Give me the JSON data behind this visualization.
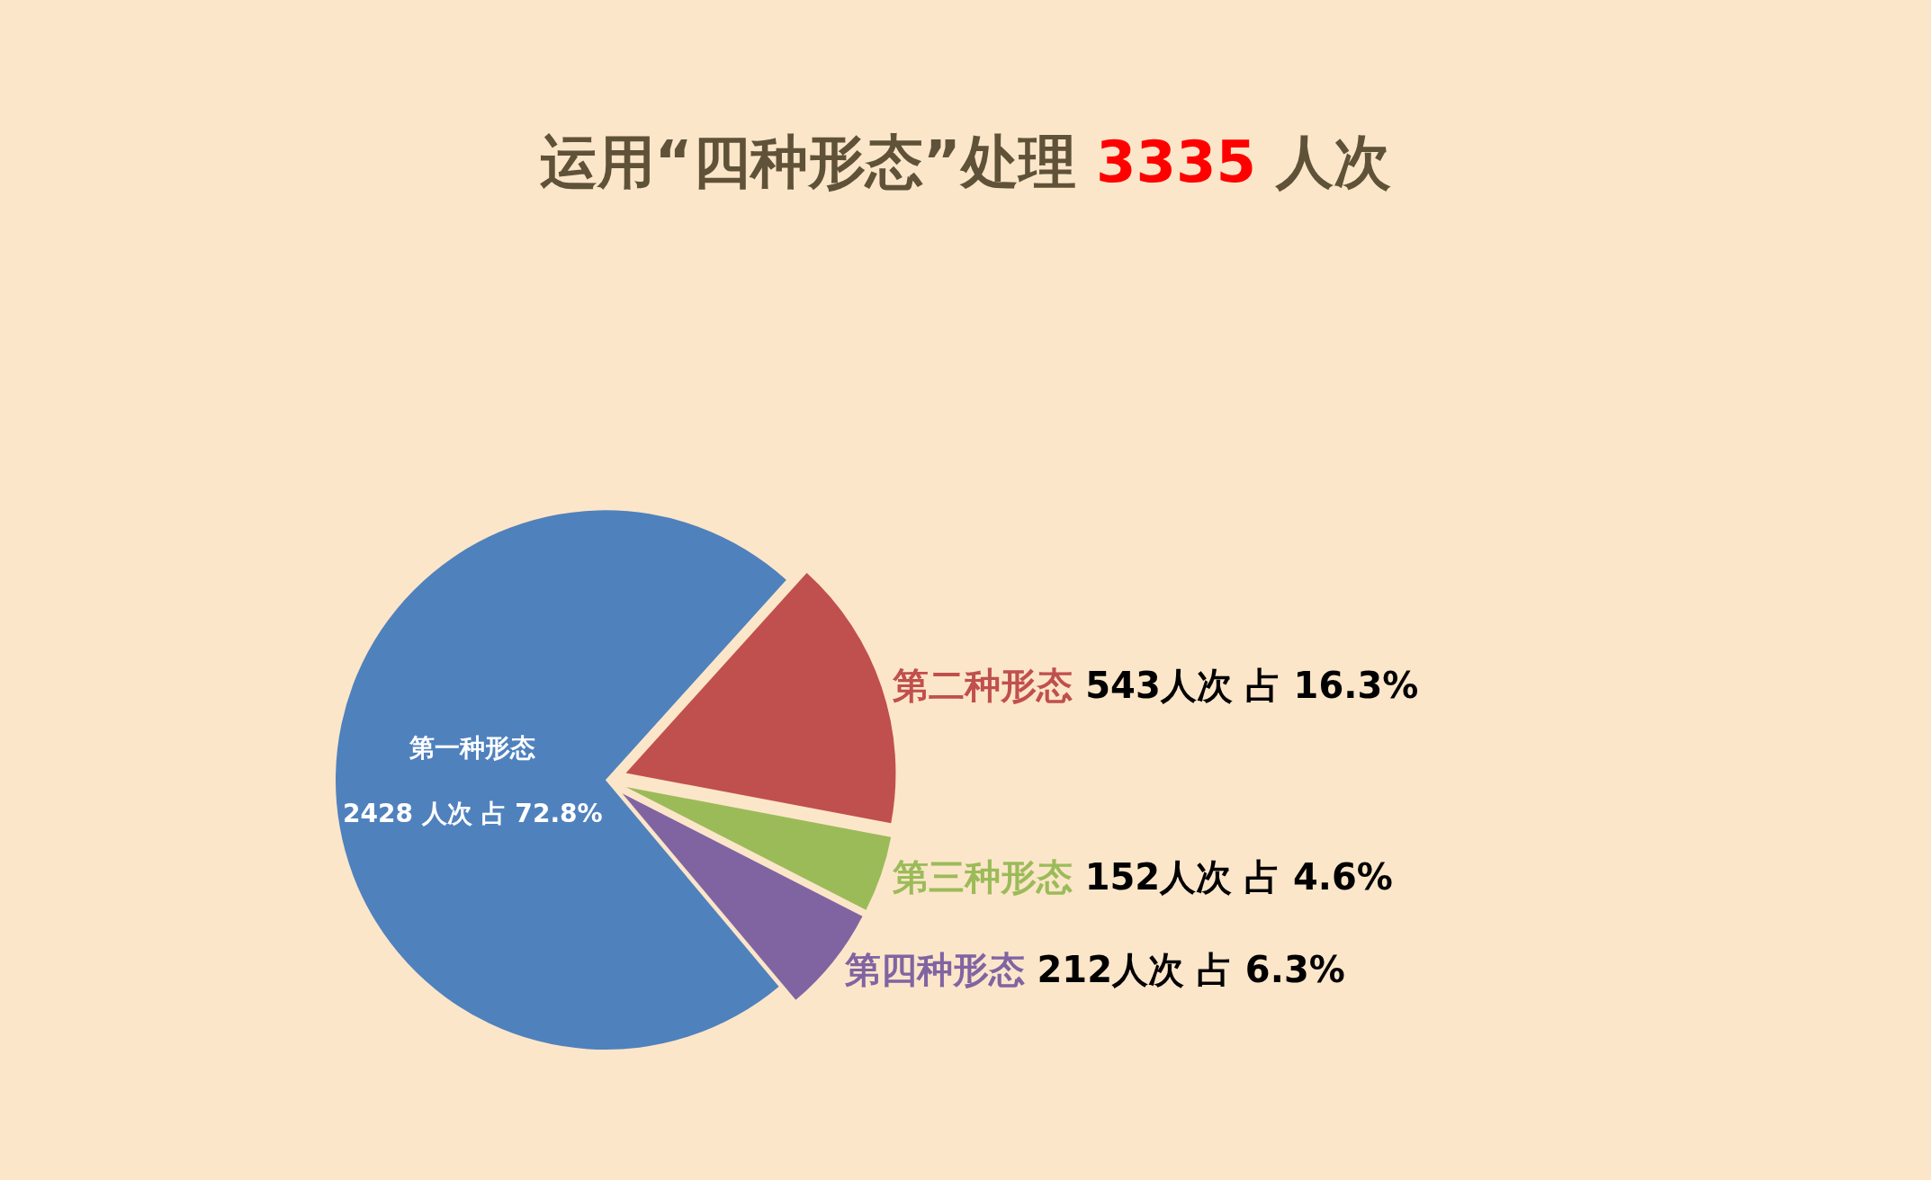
{
  "chart_data": {
    "type": "pie",
    "title": "运用“四种形态”处理 3335 人次",
    "categories": [
      "第一种形态",
      "第二种形态",
      "第三种形态",
      "第四种形态"
    ],
    "values": [
      2428,
      543,
      152,
      212
    ],
    "colors": [
      "#4f81bd",
      "#c0504d",
      "#9bbb59",
      "#8064a2"
    ],
    "value_labels": [
      "2428 人次 占 72.8%",
      "543人次 占 16.3%",
      "152人次 占 4.6%",
      "212人次 占 6.3%"
    ],
    "legend": false
  }
}
